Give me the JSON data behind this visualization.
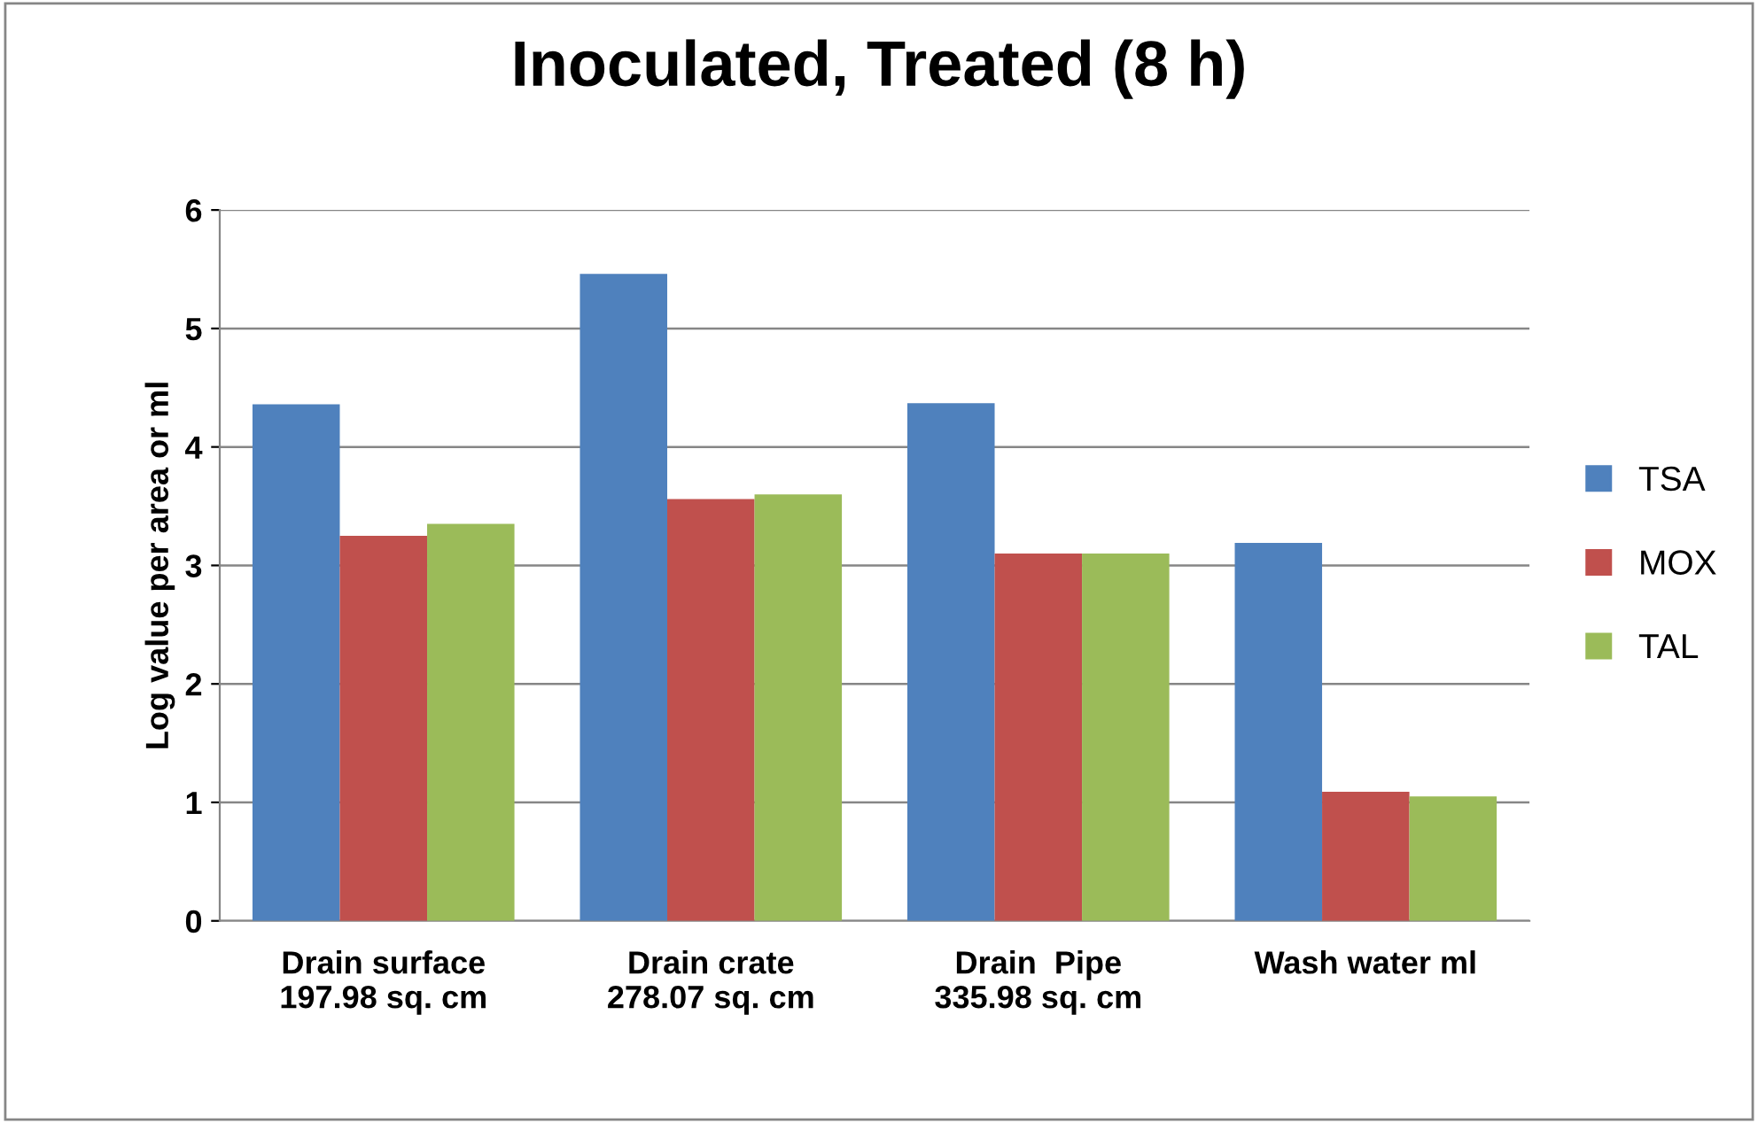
{
  "chart_data": {
    "type": "bar",
    "title": "Inoculated, Treated (8 h)",
    "ylabel": "Log value per area or ml",
    "categories": [
      "Drain surface\n197.98 sq. cm",
      "Drain crate\n278.07 sq. cm",
      "Drain  Pipe\n335.98 sq. cm",
      "Wash water ml"
    ],
    "series": [
      {
        "name": "TSA",
        "color": "#4f81bd",
        "values": [
          4.36,
          5.46,
          4.37,
          3.19
        ]
      },
      {
        "name": "MOX",
        "color": "#c0504d",
        "values": [
          3.25,
          3.56,
          3.1,
          1.09
        ]
      },
      {
        "name": "TAL",
        "color": "#9bbb59",
        "values": [
          3.35,
          3.6,
          3.1,
          1.05
        ]
      }
    ],
    "ylim": [
      0,
      6
    ],
    "yticks": [
      0,
      1,
      2,
      3,
      4,
      5,
      6
    ],
    "grid": "y",
    "legend": "right"
  }
}
